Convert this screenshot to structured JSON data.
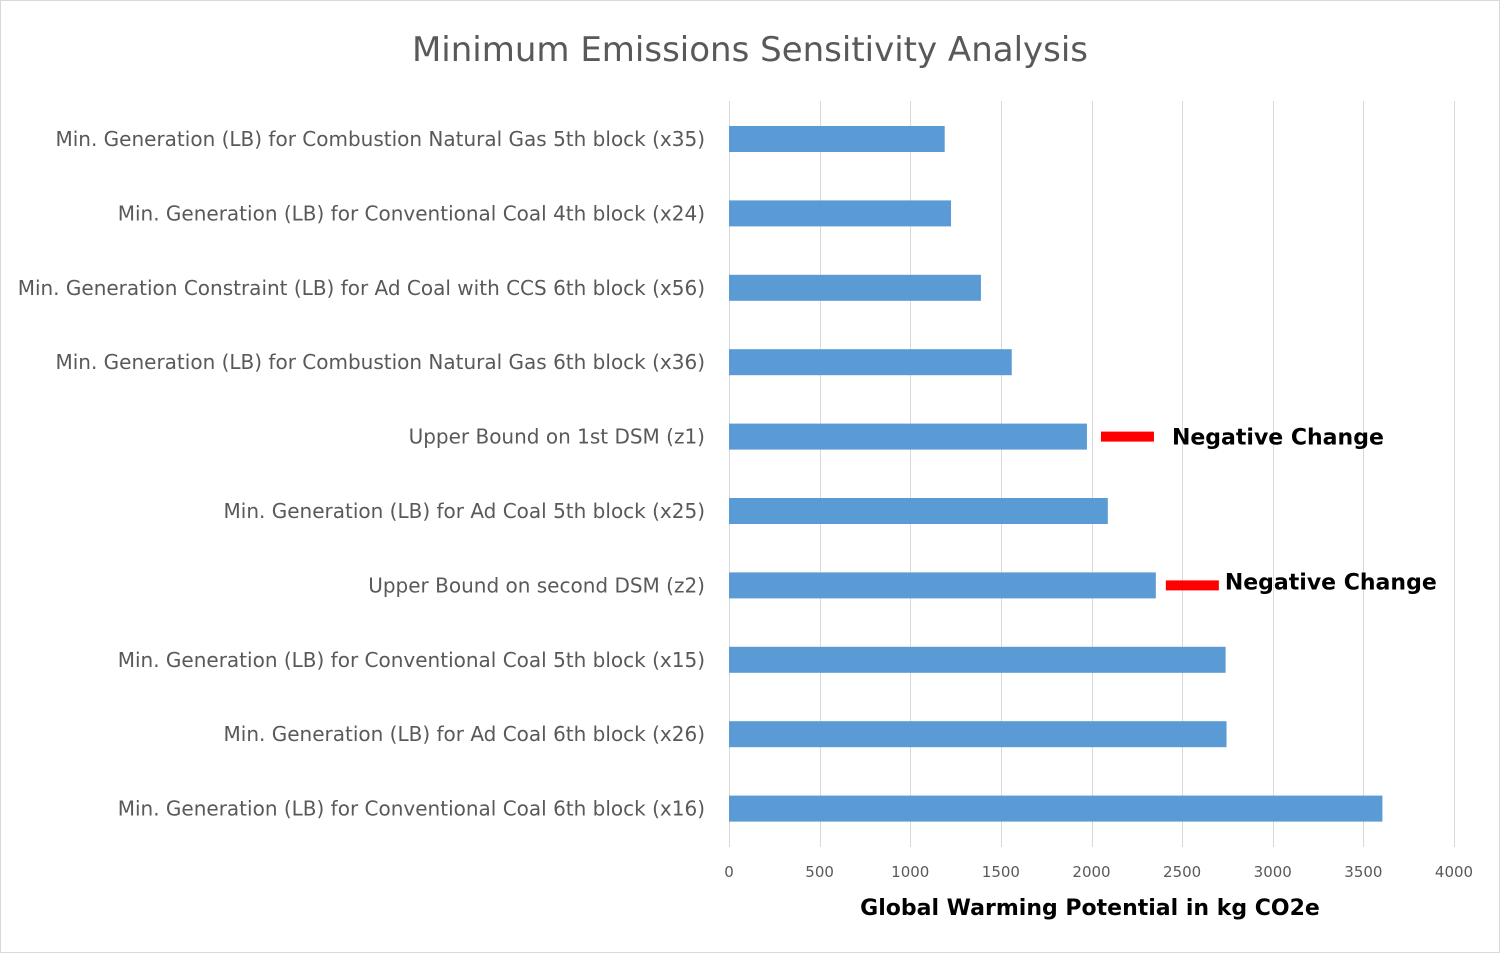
{
  "chart_data": {
    "type": "bar",
    "orientation": "horizontal",
    "title": "Minimum Emissions Sensitivity Analysis",
    "xlabel": "Global Warming Potential in kg CO2e",
    "ylabel": "",
    "xlim": [
      0,
      4000
    ],
    "x_ticks": [
      0,
      500,
      1000,
      1500,
      2000,
      2500,
      3000,
      3500,
      4000
    ],
    "grid": "vertical",
    "legend": "none",
    "categories": [
      "Min. Generation (LB) for Combustion Natural Gas 5th block (x35)",
      "Min. Generation (LB) for Conventional Coal 4th block (x24)",
      "Min. Generation Constraint (LB) for Ad Coal with CCS 6th block (x56)",
      "Min. Generation (LB) for Combustion Natural Gas 6th block (x36)",
      "Upper Bound on 1st DSM (z1)",
      "Min. Generation (LB) for Ad Coal 5th block (x25)",
      "Upper Bound on second DSM (z2)",
      "Min. Generation (LB) for Conventional Coal 5th block (x15)",
      "Min. Generation (LB) for Ad Coal 6th block (x26)",
      "Min. Generation (LB) for Conventional Coal 6th block (x16)"
    ],
    "values": [
      1190,
      1225,
      1390,
      1560,
      1975,
      2090,
      2355,
      2740,
      2745,
      3605
    ],
    "bar_color": "#5b9bd5",
    "annotations": [
      {
        "category_index": 4,
        "text": "Negative Change",
        "color": "#ff0000"
      },
      {
        "category_index": 6,
        "text": "Negative Change",
        "color": "#ff0000"
      }
    ]
  }
}
